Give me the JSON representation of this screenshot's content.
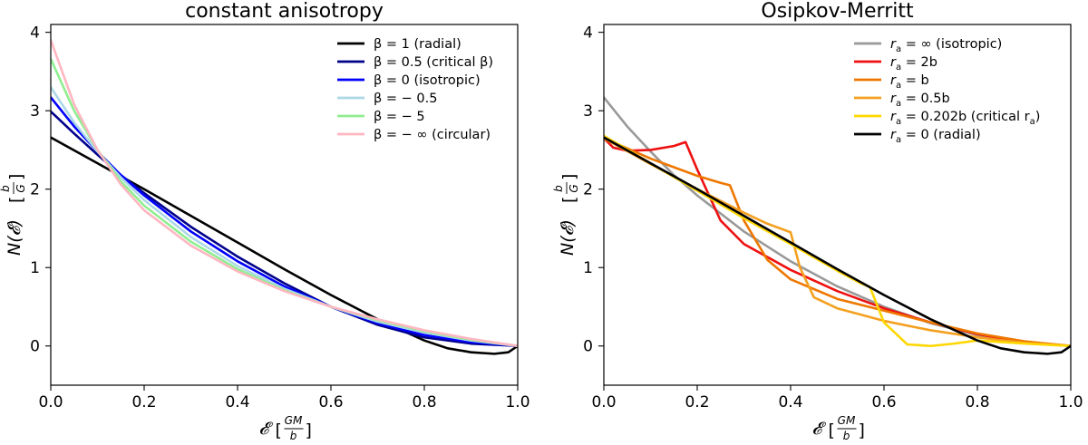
{
  "chart_data": [
    {
      "type": "line",
      "title": "constant anisotropy",
      "xlabel": "𝓔",
      "xunit_num": "GM",
      "xunit_den": "b",
      "ylabel": "N(𝓔)",
      "yunit_num": "b",
      "yunit_den": "G",
      "xlim": [
        0,
        1
      ],
      "ylim": [
        -0.5,
        4.1
      ],
      "xticks": [
        "0.0",
        "0.2",
        "0.4",
        "0.6",
        "0.8",
        "1.0"
      ],
      "yticks": [
        "0",
        "1",
        "2",
        "3",
        "4"
      ],
      "legend_position": "top-right",
      "series": [
        {
          "name": "β = 1 (radial)",
          "color": "#000000",
          "x": [
            0,
            0.1,
            0.2,
            0.3,
            0.4,
            0.5,
            0.6,
            0.7,
            0.8,
            0.85,
            0.9,
            0.95,
            0.98,
            1.0
          ],
          "y": [
            2.66,
            2.33,
            2.0,
            1.66,
            1.32,
            0.98,
            0.65,
            0.34,
            0.07,
            -0.03,
            -0.08,
            -0.1,
            -0.08,
            0.0
          ]
        },
        {
          "name": "β = 0.5 (critical β)",
          "color": "#00008b",
          "x": [
            0,
            0.05,
            0.1,
            0.15,
            0.2,
            0.3,
            0.4,
            0.5,
            0.6,
            0.7,
            0.8,
            0.9,
            1.0
          ],
          "y": [
            2.99,
            2.71,
            2.44,
            2.18,
            1.95,
            1.52,
            1.14,
            0.8,
            0.5,
            0.27,
            0.11,
            0.03,
            0.0
          ]
        },
        {
          "name": "β = 0 (isotropic)",
          "color": "#0000ff",
          "x": [
            0,
            0.05,
            0.1,
            0.15,
            0.2,
            0.3,
            0.4,
            0.5,
            0.6,
            0.7,
            0.8,
            0.9,
            1.0
          ],
          "y": [
            3.17,
            2.8,
            2.48,
            2.18,
            1.92,
            1.46,
            1.08,
            0.76,
            0.5,
            0.29,
            0.14,
            0.05,
            0.0
          ]
        },
        {
          "name": "β = − 0.5",
          "color": "#add8e6",
          "x": [
            0,
            0.05,
            0.1,
            0.15,
            0.2,
            0.3,
            0.4,
            0.5,
            0.6,
            0.7,
            0.8,
            0.9,
            1.0
          ],
          "y": [
            3.3,
            2.85,
            2.48,
            2.15,
            1.86,
            1.39,
            1.02,
            0.73,
            0.5,
            0.31,
            0.17,
            0.07,
            0.0
          ]
        },
        {
          "name": "β = − 5",
          "color": "#90ee90",
          "x": [
            0,
            0.05,
            0.1,
            0.15,
            0.2,
            0.3,
            0.4,
            0.5,
            0.6,
            0.7,
            0.8,
            0.9,
            1.0
          ],
          "y": [
            3.66,
            3.0,
            2.5,
            2.1,
            1.79,
            1.33,
            0.98,
            0.71,
            0.5,
            0.33,
            0.19,
            0.08,
            0.0
          ]
        },
        {
          "name": "β = − ∞ (circular)",
          "color": "#ffb6c1",
          "x": [
            0,
            0.05,
            0.1,
            0.15,
            0.2,
            0.3,
            0.4,
            0.5,
            0.6,
            0.7,
            0.8,
            0.9,
            1.0
          ],
          "y": [
            3.9,
            3.08,
            2.5,
            2.06,
            1.73,
            1.28,
            0.95,
            0.7,
            0.5,
            0.34,
            0.2,
            0.09,
            0.0
          ]
        }
      ]
    },
    {
      "type": "line",
      "title": "Osipkov-Merritt",
      "xlabel": "𝓔",
      "xunit_num": "GM",
      "xunit_den": "b",
      "ylabel": "N(𝓔)",
      "yunit_num": "b",
      "yunit_den": "G",
      "xlim": [
        0,
        1
      ],
      "ylim": [
        -0.5,
        4.1
      ],
      "xticks": [
        "0.0",
        "0.2",
        "0.4",
        "0.6",
        "0.8",
        "1.0"
      ],
      "yticks": [
        "0",
        "1",
        "2",
        "3",
        "4"
      ],
      "legend_position": "top-right",
      "series": [
        {
          "name": "r_a = ∞ (isotropic)",
          "legend_main": "r",
          "legend_sub": "a",
          "legend_rest": " = ∞ (isotropic)",
          "color": "#999999",
          "x": [
            0,
            0.05,
            0.1,
            0.15,
            0.2,
            0.3,
            0.4,
            0.5,
            0.6,
            0.7,
            0.8,
            0.9,
            1.0
          ],
          "y": [
            3.17,
            2.8,
            2.48,
            2.18,
            1.92,
            1.46,
            1.08,
            0.76,
            0.5,
            0.29,
            0.14,
            0.05,
            0.0
          ]
        },
        {
          "name": "r_a = 2b",
          "legend_main": "r",
          "legend_sub": "a",
          "legend_rest": " = 2b",
          "color": "#ee1111",
          "x": [
            0,
            0.02,
            0.05,
            0.1,
            0.15,
            0.175,
            0.2,
            0.25,
            0.3,
            0.4,
            0.5,
            0.6,
            0.7,
            0.8,
            0.9,
            1.0
          ],
          "y": [
            2.65,
            2.53,
            2.49,
            2.5,
            2.55,
            2.6,
            2.25,
            1.6,
            1.3,
            0.97,
            0.7,
            0.48,
            0.3,
            0.15,
            0.05,
            0.0
          ]
        },
        {
          "name": "r_a = b",
          "legend_main": "r",
          "legend_sub": "a",
          "legend_rest": " = b",
          "color": "#ee7700",
          "x": [
            0,
            0.05,
            0.1,
            0.15,
            0.2,
            0.25,
            0.27,
            0.3,
            0.35,
            0.4,
            0.5,
            0.6,
            0.7,
            0.8,
            0.9,
            1.0
          ],
          "y": [
            2.65,
            2.52,
            2.39,
            2.28,
            2.17,
            2.08,
            2.05,
            1.6,
            1.1,
            0.85,
            0.6,
            0.45,
            0.3,
            0.16,
            0.06,
            0.0
          ]
        },
        {
          "name": "r_a = 0.5b",
          "legend_main": "r",
          "legend_sub": "a",
          "legend_rest": " = 0.5b",
          "color": "#f4a020",
          "x": [
            0,
            0.1,
            0.2,
            0.3,
            0.35,
            0.4,
            0.42,
            0.45,
            0.5,
            0.6,
            0.7,
            0.8,
            0.9,
            1.0
          ],
          "y": [
            2.65,
            2.32,
            2.0,
            1.7,
            1.56,
            1.45,
            1.0,
            0.62,
            0.48,
            0.32,
            0.2,
            0.11,
            0.04,
            0.0
          ]
        },
        {
          "name": "r_a = 0.202b (critical r_a)",
          "legend_main": "r",
          "legend_sub": "a",
          "legend_rest": " = 0.202b (critical r",
          "legend_tail_sub": "a",
          "legend_tail": ")",
          "color": "#ffd700",
          "x": [
            0,
            0.1,
            0.2,
            0.3,
            0.4,
            0.5,
            0.55,
            0.57,
            0.6,
            0.65,
            0.7,
            0.75,
            0.8,
            0.9,
            1.0
          ],
          "y": [
            2.68,
            2.33,
            1.98,
            1.63,
            1.3,
            0.96,
            0.8,
            0.75,
            0.3,
            0.02,
            0.0,
            0.03,
            0.07,
            0.03,
            0.0
          ]
        },
        {
          "name": "r_a = 0 (radial)",
          "legend_main": "r",
          "legend_sub": "a",
          "legend_rest": " = 0 (radial)",
          "color": "#000000",
          "x": [
            0,
            0.1,
            0.2,
            0.3,
            0.4,
            0.5,
            0.6,
            0.7,
            0.8,
            0.85,
            0.9,
            0.95,
            0.98,
            1.0
          ],
          "y": [
            2.66,
            2.33,
            2.0,
            1.66,
            1.32,
            0.98,
            0.65,
            0.34,
            0.07,
            -0.03,
            -0.08,
            -0.1,
            -0.08,
            0.0
          ]
        }
      ]
    }
  ]
}
